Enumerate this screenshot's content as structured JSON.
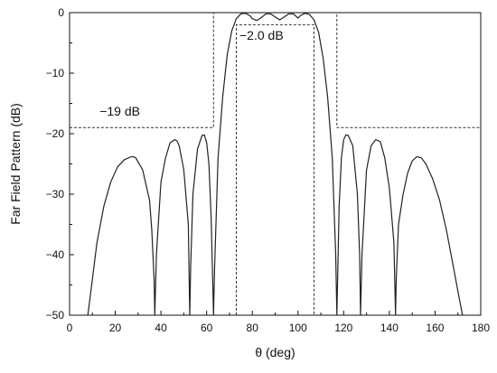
{
  "chart_data": {
    "type": "line",
    "xlabel": "θ (deg)",
    "ylabel": "Far Field Pattern (dB)",
    "xlim": [
      0,
      180
    ],
    "ylim": [
      -50,
      0
    ],
    "xticks": [
      0,
      20,
      40,
      60,
      80,
      100,
      120,
      140,
      160,
      180
    ],
    "yticks": [
      0,
      -10,
      -20,
      -30,
      -40,
      -50
    ],
    "xtick_labels": [
      "0",
      "20",
      "40",
      "60",
      "80",
      "100",
      "120",
      "140",
      "160",
      "180"
    ],
    "ytick_labels": [
      "0",
      "−10",
      "−20",
      "−30",
      "−40",
      "−50"
    ],
    "grid": false,
    "colors": {
      "curve": "#222222",
      "mask": "#333333"
    },
    "series": [
      {
        "style": "solid",
        "x": [
          8,
          10,
          12,
          15,
          18,
          21,
          24,
          27,
          28,
          29,
          32,
          35,
          36,
          37,
          37.3,
          38,
          40,
          42,
          44,
          46,
          47,
          48,
          50,
          52,
          52.6,
          53,
          54,
          56,
          58,
          59,
          60,
          61,
          62,
          63,
          63.5,
          65,
          67,
          69,
          71,
          73,
          75,
          77,
          79,
          80,
          82,
          84,
          86,
          88,
          90,
          92,
          94,
          96,
          98,
          100,
          101,
          103,
          105,
          107,
          109,
          111,
          113,
          115,
          116.5,
          117,
          118,
          119,
          120,
          121,
          122,
          124,
          126,
          127,
          127.4,
          128,
          130,
          132,
          134,
          136,
          138,
          140,
          142,
          142.7,
          143,
          144,
          146,
          148,
          150,
          152,
          154,
          156,
          159,
          162,
          165,
          168,
          170,
          172
        ],
        "y": [
          -50,
          -44,
          -38,
          -32,
          -28,
          -25.5,
          -24.3,
          -23.8,
          -23.8,
          -24,
          -26,
          -31,
          -36,
          -44,
          -50,
          -40,
          -28,
          -24,
          -21.5,
          -21,
          -21.2,
          -22,
          -26,
          -35,
          -50,
          -42,
          -30,
          -22.5,
          -20.3,
          -20.2,
          -21.5,
          -25,
          -34,
          -50,
          -42,
          -24,
          -14,
          -7,
          -3,
          -1,
          -0.2,
          -0.1,
          -0.5,
          -1,
          -1.3,
          -0.8,
          -0.2,
          -0.2,
          -0.7,
          -1.2,
          -0.7,
          -0.2,
          -0.2,
          -0.9,
          -0.5,
          -0.1,
          -0.3,
          -1.2,
          -3.2,
          -7.5,
          -14,
          -24,
          -40,
          -50,
          -32,
          -24,
          -21,
          -20.2,
          -20.3,
          -22,
          -30,
          -40,
          -50,
          -40,
          -26,
          -22,
          -21,
          -21.3,
          -24,
          -29,
          -38,
          -50,
          -44,
          -35,
          -30,
          -26.5,
          -24.5,
          -23.8,
          -24,
          -25,
          -27.5,
          -31,
          -36,
          -42,
          -46,
          -50
        ]
      },
      {
        "style": "dashed",
        "x": [
          0,
          63,
          63,
          117,
          117,
          180
        ],
        "y": [
          -19,
          -19,
          0,
          0,
          -19,
          -19
        ]
      },
      {
        "style": "dashed",
        "x": [
          73,
          73,
          107,
          107
        ],
        "y": [
          -50,
          -2,
          -2,
          -50
        ]
      }
    ],
    "annotations": [
      {
        "text": "−19 dB",
        "x": 22,
        "y": -17
      },
      {
        "text": "−2.0 dB",
        "x": 84,
        "y": -4.5
      }
    ]
  }
}
